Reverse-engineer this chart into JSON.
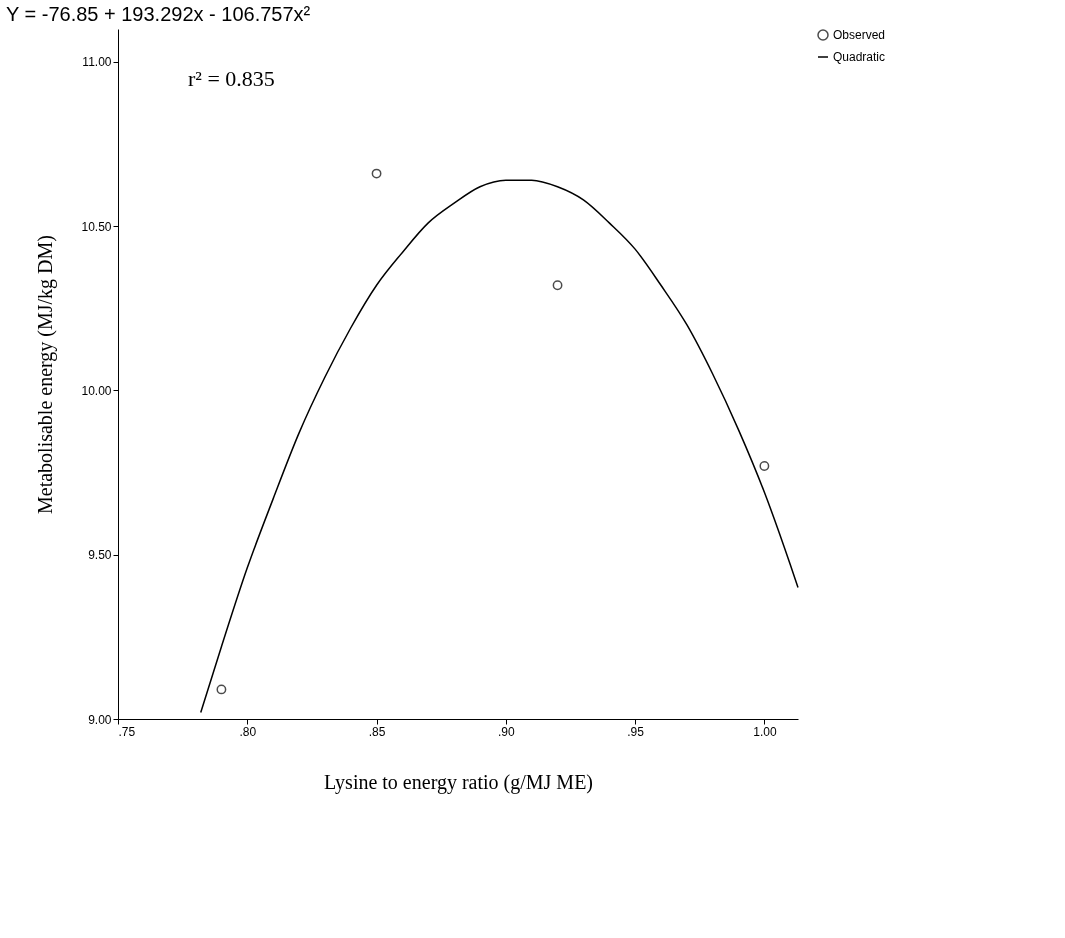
{
  "chart_data": {
    "type": "scatter",
    "title": "Y = -76.85 + 193.292x - 106.757x²",
    "xlabel": "Lysine to energy ratio (g/MJ ME)",
    "ylabel": "Metabolisable energy (MJ/kg DM)",
    "annotations": [
      "r² = 0.835"
    ],
    "xlim": [
      0.75,
      1.013
    ],
    "ylim": [
      9.0,
      11.1
    ],
    "xticks": [
      {
        "value": 0.75,
        "label": ".75"
      },
      {
        "value": 0.8,
        "label": ".80"
      },
      {
        "value": 0.85,
        "label": ".85"
      },
      {
        "value": 0.9,
        "label": ".90"
      },
      {
        "value": 0.95,
        "label": ".95"
      },
      {
        "value": 1.0,
        "label": "1.00"
      }
    ],
    "yticks": [
      {
        "value": 9.0,
        "label": "9.00"
      },
      {
        "value": 9.5,
        "label": "9.50"
      },
      {
        "value": 10.0,
        "label": "10.00"
      },
      {
        "value": 10.5,
        "label": "10.50"
      },
      {
        "value": 11.0,
        "label": "11.00"
      }
    ],
    "grid": false,
    "legend": "top right",
    "series": [
      {
        "name": "Observed",
        "type": "scatter",
        "marker": "circle",
        "color": "#000000",
        "x": [
          0.79,
          0.85,
          0.92,
          1.0
        ],
        "values": [
          9.09,
          10.66,
          10.32,
          9.77
        ]
      },
      {
        "name": "Quadratic",
        "type": "line",
        "line_style": "solid",
        "color": "#000000",
        "x": [
          0.782,
          0.79,
          0.8,
          0.81,
          0.82,
          0.83,
          0.84,
          0.85,
          0.86,
          0.87,
          0.88,
          0.89,
          0.9,
          0.91,
          0.92,
          0.93,
          0.94,
          0.95,
          0.96,
          0.97,
          0.98,
          0.99,
          1.0,
          1.01,
          1.013
        ],
        "values": [
          9.02,
          9.22,
          9.46,
          9.67,
          9.87,
          10.04,
          10.19,
          10.32,
          10.42,
          10.51,
          10.57,
          10.62,
          10.64,
          10.64,
          10.62,
          10.58,
          10.51,
          10.43,
          10.32,
          10.2,
          10.05,
          9.88,
          9.69,
          9.47,
          9.4
        ]
      }
    ]
  }
}
